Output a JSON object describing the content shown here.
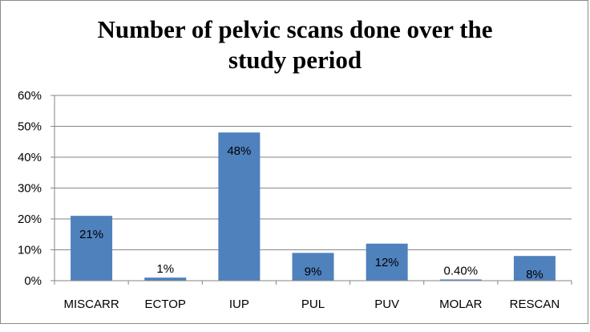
{
  "chart_data": {
    "type": "bar",
    "title_lines": [
      "Number of pelvic scans done over the",
      "study period"
    ],
    "categories": [
      "MISCARR",
      "ECTOP",
      "IUP",
      "PUL",
      "PUV",
      "MOLAR",
      "RESCAN"
    ],
    "values": [
      0.21,
      0.01,
      0.48,
      0.09,
      0.12,
      0.004,
      0.08
    ],
    "data_labels": [
      "21%",
      "1%",
      "48%",
      "9%",
      "12%",
      "0.40%",
      "8%"
    ],
    "y_ticks": [
      "0%",
      "10%",
      "20%",
      "30%",
      "40%",
      "50%",
      "60%"
    ],
    "ylim": [
      0,
      0.6
    ],
    "grid": true,
    "legend": "none",
    "colors": {
      "bar": "#4f81bd",
      "grid": "#868686",
      "axis": "#868686"
    }
  }
}
